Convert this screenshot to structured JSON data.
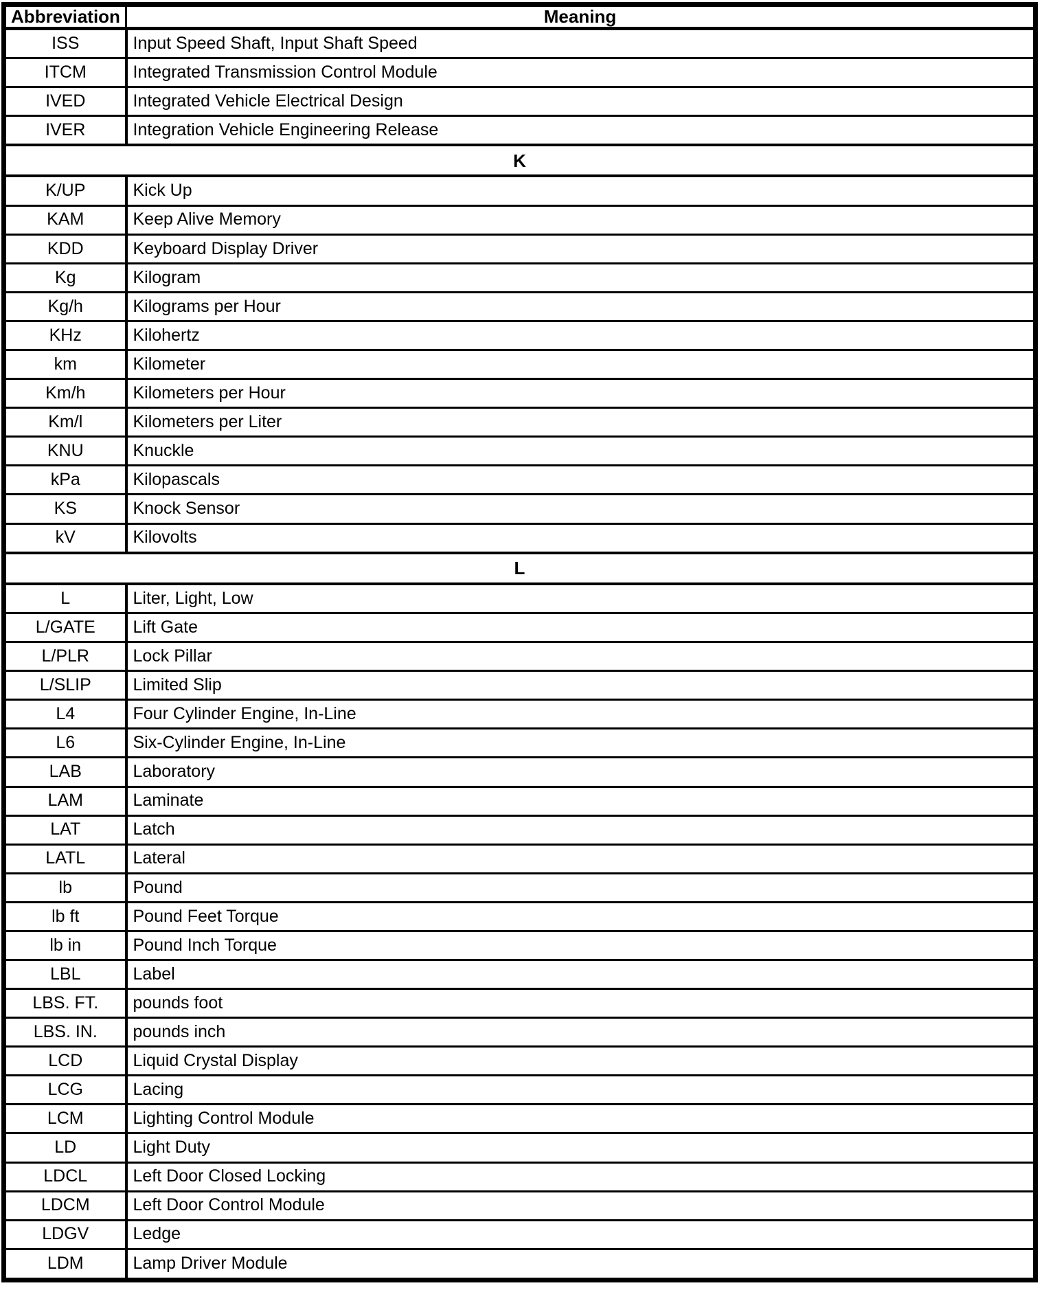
{
  "colors": {
    "border": "#000000",
    "background": "#ffffff",
    "text": "#000000"
  },
  "table": {
    "headers": {
      "abbreviation": "Abbreviation",
      "meaning": "Meaning"
    },
    "rows": [
      {
        "abbr": "ISS",
        "meaning": "Input Speed Shaft, Input Shaft Speed"
      },
      {
        "abbr": "ITCM",
        "meaning": "Integrated Transmission Control Module"
      },
      {
        "abbr": "IVED",
        "meaning": "Integrated Vehicle Electrical Design"
      },
      {
        "abbr": "IVER",
        "meaning": "Integration Vehicle Engineering Release"
      },
      {
        "section": "K"
      },
      {
        "abbr": "K/UP",
        "meaning": "Kick Up"
      },
      {
        "abbr": "KAM",
        "meaning": "Keep Alive Memory"
      },
      {
        "abbr": "KDD",
        "meaning": "Keyboard Display Driver"
      },
      {
        "abbr": "Kg",
        "meaning": "Kilogram"
      },
      {
        "abbr": "Kg/h",
        "meaning": "Kilograms per Hour"
      },
      {
        "abbr": "KHz",
        "meaning": "Kilohertz"
      },
      {
        "abbr": "km",
        "meaning": "Kilometer"
      },
      {
        "abbr": "Km/h",
        "meaning": "Kilometers per Hour"
      },
      {
        "abbr": "Km/l",
        "meaning": "Kilometers per Liter"
      },
      {
        "abbr": "KNU",
        "meaning": "Knuckle"
      },
      {
        "abbr": "kPa",
        "meaning": "Kilopascals"
      },
      {
        "abbr": "KS",
        "meaning": "Knock Sensor"
      },
      {
        "abbr": "kV",
        "meaning": "Kilovolts"
      },
      {
        "section": "L"
      },
      {
        "abbr": "L",
        "meaning": "Liter, Light, Low"
      },
      {
        "abbr": "L/GATE",
        "meaning": "Lift Gate"
      },
      {
        "abbr": "L/PLR",
        "meaning": "Lock Pillar"
      },
      {
        "abbr": "L/SLIP",
        "meaning": "Limited Slip"
      },
      {
        "abbr": "L4",
        "meaning": "Four Cylinder Engine, In-Line"
      },
      {
        "abbr": "L6",
        "meaning": "Six-Cylinder Engine, In-Line"
      },
      {
        "abbr": "LAB",
        "meaning": "Laboratory"
      },
      {
        "abbr": "LAM",
        "meaning": "Laminate"
      },
      {
        "abbr": "LAT",
        "meaning": "Latch"
      },
      {
        "abbr": "LATL",
        "meaning": "Lateral"
      },
      {
        "abbr": "lb",
        "meaning": "Pound"
      },
      {
        "abbr": "lb ft",
        "meaning": "Pound Feet Torque"
      },
      {
        "abbr": "lb in",
        "meaning": "Pound Inch Torque"
      },
      {
        "abbr": "LBL",
        "meaning": "Label"
      },
      {
        "abbr": "LBS. FT.",
        "meaning": "pounds foot"
      },
      {
        "abbr": "LBS. IN.",
        "meaning": "pounds inch"
      },
      {
        "abbr": "LCD",
        "meaning": "Liquid Crystal Display"
      },
      {
        "abbr": "LCG",
        "meaning": "Lacing"
      },
      {
        "abbr": "LCM",
        "meaning": "Lighting Control Module"
      },
      {
        "abbr": "LD",
        "meaning": "Light Duty"
      },
      {
        "abbr": "LDCL",
        "meaning": "Left Door Closed Locking"
      },
      {
        "abbr": "LDCM",
        "meaning": "Left Door Control Module"
      },
      {
        "abbr": "LDGV",
        "meaning": "Ledge"
      },
      {
        "abbr": "LDM",
        "meaning": "Lamp Driver Module"
      }
    ]
  }
}
